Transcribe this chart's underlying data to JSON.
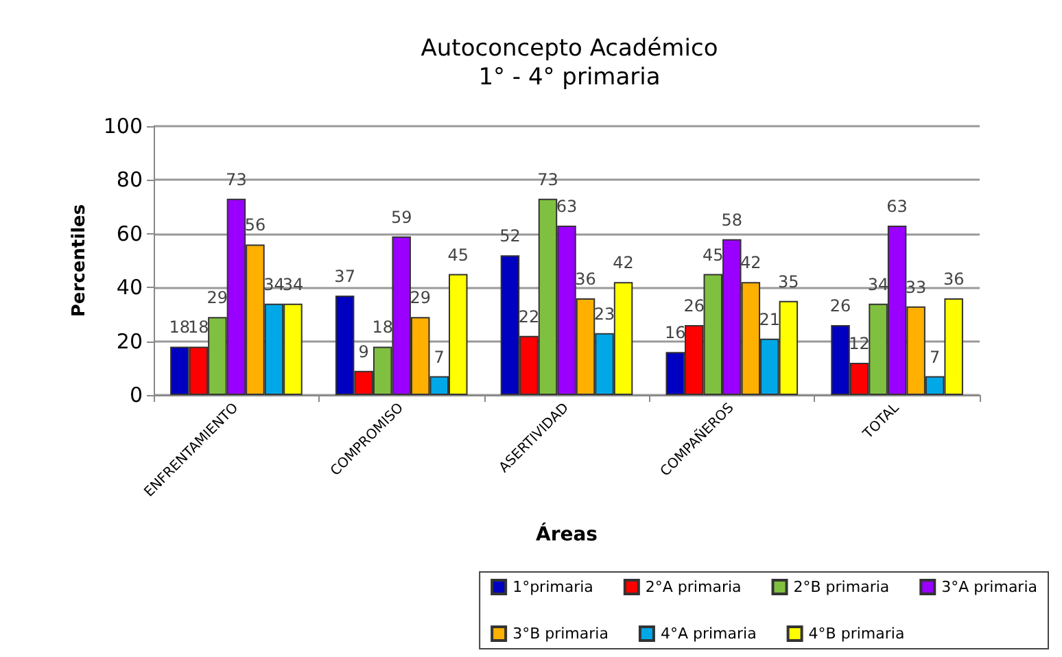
{
  "chart_data": {
    "type": "bar",
    "title": "Autoconcepto Académico",
    "subtitle": "1° - 4° primaria",
    "xlabel": "Áreas",
    "ylabel": "Percentiles",
    "categories": [
      "ENFRENTAMIENTO",
      "COMPROMISO",
      "ASERTIVIDAD",
      "COMPAÑEROS",
      "TOTAL"
    ],
    "series": [
      {
        "name": "1°primaria",
        "color": "#0000c0",
        "values": [
          18,
          37,
          52,
          16,
          26
        ]
      },
      {
        "name": "2°A primaria",
        "color": "#ff0000",
        "values": [
          18,
          9,
          22,
          26,
          12
        ]
      },
      {
        "name": "2°B primaria",
        "color": "#80c040",
        "values": [
          29,
          18,
          73,
          45,
          34
        ]
      },
      {
        "name": "3°A primaria",
        "color": "#9900ff",
        "values": [
          73,
          59,
          63,
          58,
          63
        ]
      },
      {
        "name": "3°B primaria",
        "color": "#ffb000",
        "values": [
          56,
          29,
          36,
          42,
          33
        ]
      },
      {
        "name": "4°A primaria",
        "color": "#00a8e8",
        "values": [
          34,
          7,
          23,
          21,
          7
        ]
      },
      {
        "name": "4°B primaria",
        "color": "#ffff00",
        "values": [
          34,
          45,
          42,
          35,
          36
        ]
      }
    ],
    "ylim": [
      0,
      100
    ],
    "yticks": [
      0,
      20,
      40,
      60,
      80,
      100
    ],
    "grid": "y",
    "legend": "bottom right",
    "data_labels": true
  }
}
